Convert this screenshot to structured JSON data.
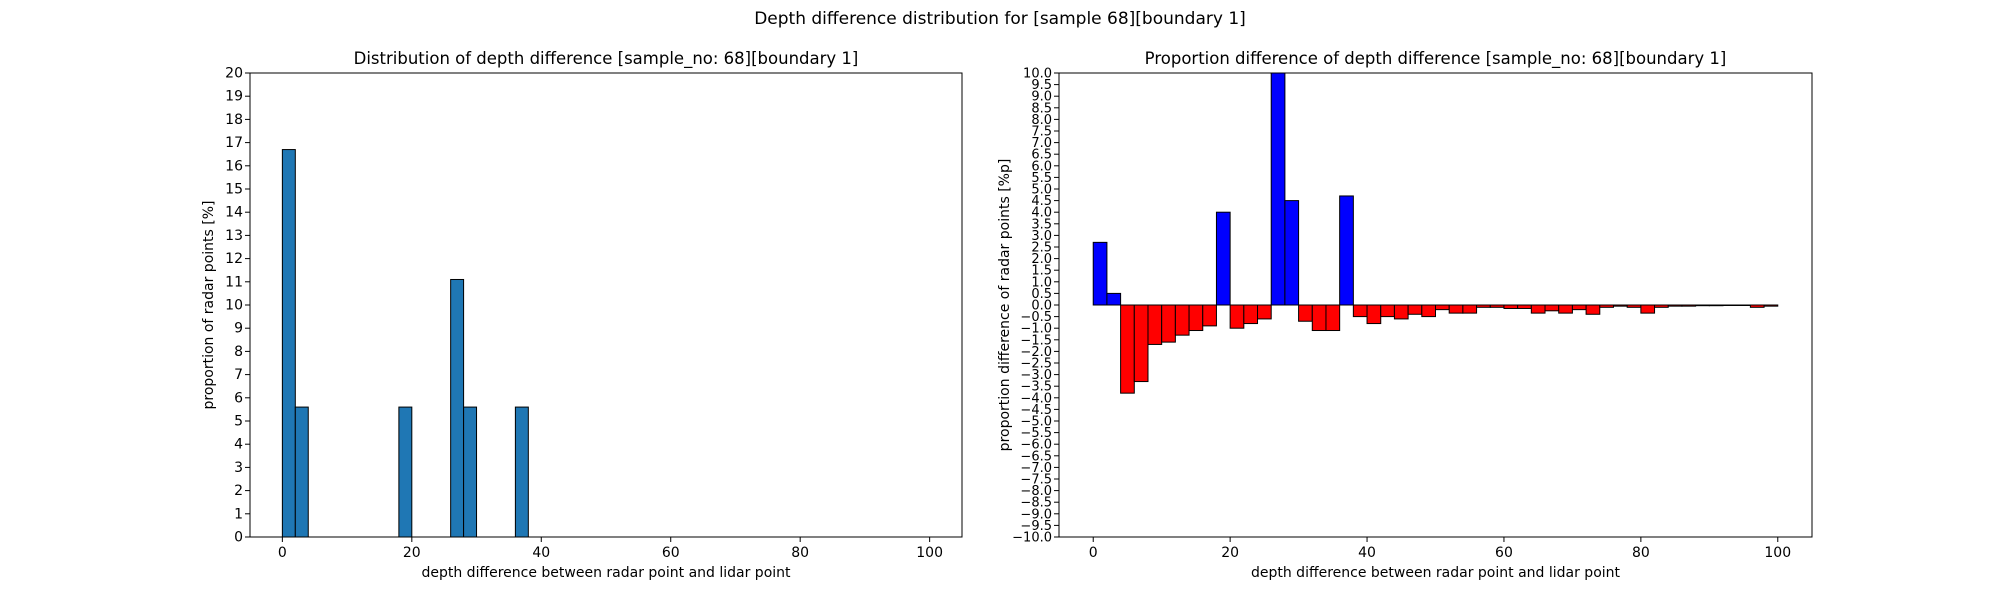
{
  "figure": {
    "suptitle": "Depth difference distribution for [sample 68][boundary 1]"
  },
  "chart_data": [
    {
      "type": "bar",
      "title": "Distribution of depth difference [sample_no: 68][boundary 1]",
      "xlabel": "depth difference between radar point and lidar point",
      "ylabel": "proportion of radar points [%]",
      "xlim": [
        -5,
        105
      ],
      "ylim": [
        0,
        20
      ],
      "xticks": [
        0,
        20,
        40,
        60,
        80,
        100
      ],
      "yticks": [
        0,
        1,
        2,
        3,
        4,
        5,
        6,
        7,
        8,
        9,
        10,
        11,
        12,
        13,
        14,
        15,
        16,
        17,
        18,
        19,
        20
      ],
      "bin_width": 2,
      "bar_color": "#1f77b4",
      "edge_color": "#000000",
      "grid": false,
      "bars": [
        {
          "x": 0,
          "value": 16.7
        },
        {
          "x": 2,
          "value": 5.6
        },
        {
          "x": 18,
          "value": 5.6
        },
        {
          "x": 26,
          "value": 11.1
        },
        {
          "x": 28,
          "value": 5.6
        },
        {
          "x": 36,
          "value": 5.6
        }
      ]
    },
    {
      "type": "bar",
      "title": "Proportion difference of depth difference [sample_no: 68][boundary 1]",
      "xlabel": "depth difference between radar point and lidar point",
      "ylabel": "proportion difference of radar points [%p]",
      "xlim": [
        -5,
        105
      ],
      "ylim": [
        -10,
        10
      ],
      "xticks": [
        0,
        20,
        40,
        60,
        80,
        100
      ],
      "ytick_step": 0.5,
      "bin_width": 2,
      "positive_color": "#0000ff",
      "negative_color": "#ff0000",
      "edge_color": "#000000",
      "grid": false,
      "bars": [
        {
          "x": 0,
          "value": 2.7
        },
        {
          "x": 2,
          "value": 0.5
        },
        {
          "x": 4,
          "value": -3.8
        },
        {
          "x": 6,
          "value": -3.3
        },
        {
          "x": 8,
          "value": -1.7
        },
        {
          "x": 10,
          "value": -1.6
        },
        {
          "x": 12,
          "value": -1.3
        },
        {
          "x": 14,
          "value": -1.1
        },
        {
          "x": 16,
          "value": -0.9
        },
        {
          "x": 18,
          "value": 4.0
        },
        {
          "x": 20,
          "value": -1.0
        },
        {
          "x": 22,
          "value": -0.8
        },
        {
          "x": 24,
          "value": -0.6
        },
        {
          "x": 26,
          "value": 10.0
        },
        {
          "x": 28,
          "value": 4.5
        },
        {
          "x": 30,
          "value": -0.7
        },
        {
          "x": 32,
          "value": -1.1
        },
        {
          "x": 34,
          "value": -1.1
        },
        {
          "x": 36,
          "value": 4.7
        },
        {
          "x": 38,
          "value": -0.5
        },
        {
          "x": 40,
          "value": -0.8
        },
        {
          "x": 42,
          "value": -0.5
        },
        {
          "x": 44,
          "value": -0.6
        },
        {
          "x": 46,
          "value": -0.4
        },
        {
          "x": 48,
          "value": -0.5
        },
        {
          "x": 50,
          "value": -0.2
        },
        {
          "x": 52,
          "value": -0.35
        },
        {
          "x": 54,
          "value": -0.35
        },
        {
          "x": 56,
          "value": -0.1
        },
        {
          "x": 58,
          "value": -0.1
        },
        {
          "x": 60,
          "value": -0.15
        },
        {
          "x": 62,
          "value": -0.15
        },
        {
          "x": 64,
          "value": -0.35
        },
        {
          "x": 66,
          "value": -0.25
        },
        {
          "x": 68,
          "value": -0.35
        },
        {
          "x": 70,
          "value": -0.2
        },
        {
          "x": 72,
          "value": -0.4
        },
        {
          "x": 74,
          "value": -0.1
        },
        {
          "x": 76,
          "value": -0.05
        },
        {
          "x": 78,
          "value": -0.1
        },
        {
          "x": 80,
          "value": -0.35
        },
        {
          "x": 82,
          "value": -0.1
        },
        {
          "x": 84,
          "value": -0.05
        },
        {
          "x": 86,
          "value": -0.05
        },
        {
          "x": 88,
          "value": -0.03
        },
        {
          "x": 90,
          "value": -0.03
        },
        {
          "x": 92,
          "value": -0.02
        },
        {
          "x": 94,
          "value": -0.02
        },
        {
          "x": 96,
          "value": -0.1
        },
        {
          "x": 98,
          "value": -0.05
        }
      ]
    }
  ]
}
